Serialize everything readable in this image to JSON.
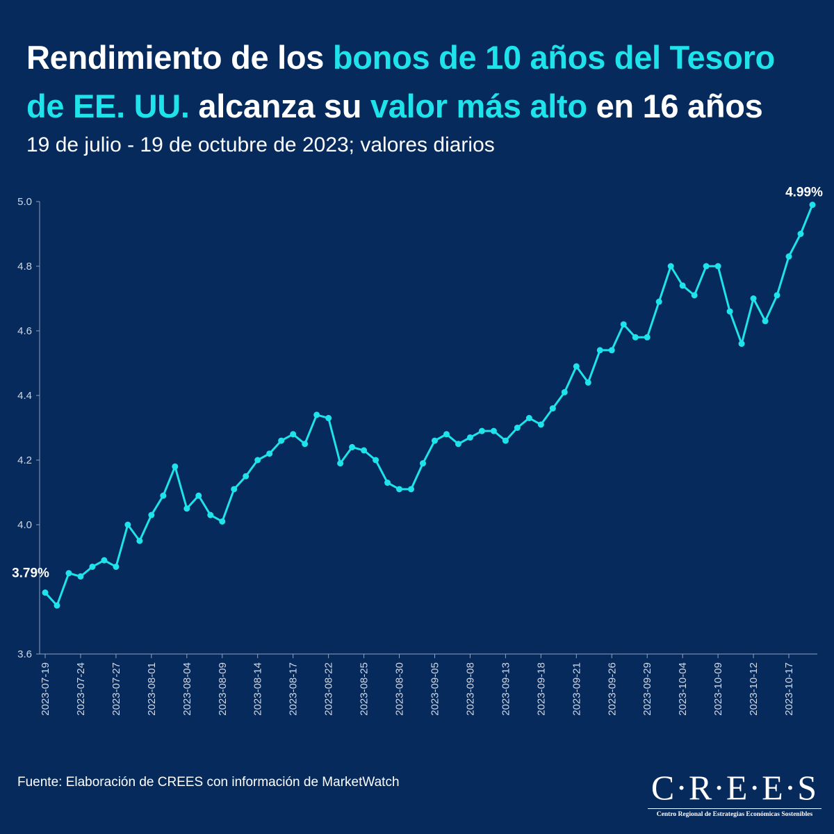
{
  "title_segments": [
    {
      "text": "Rendimiento de los ",
      "highlight": false
    },
    {
      "text": "bonos de 10 años del Tesoro de EE. UU.",
      "highlight": true
    },
    {
      "text": " alcanza su ",
      "highlight": false
    },
    {
      "text": "valor más alto",
      "highlight": true
    },
    {
      "text": " en 16 años",
      "highlight": false
    }
  ],
  "subtitle": "19 de julio - 19 de octubre de 2023; valores diarios",
  "source": "Fuente: Elaboración de CREES con información de MarketWatch",
  "logo": {
    "name": "C·R·E·E·S",
    "subtitle": "Centro Regional de Estrategias Económicas Sostenibles"
  },
  "colors": {
    "background": "#072a5c",
    "line": "#1ee3ea",
    "highlight": "#1ee3ea",
    "axis": "#8fa3c0"
  },
  "chart_data": {
    "type": "line",
    "title": "Rendimiento de los bonos de 10 años del Tesoro de EE. UU. alcanza su valor más alto en 16 años",
    "xlabel": "",
    "ylabel": "",
    "ylim": [
      3.6,
      5.0
    ],
    "yticks": [
      "3.6",
      "4.0",
      "4.2",
      "4.4",
      "4.6",
      "4.8",
      "5.0"
    ],
    "grid": false,
    "tick_every": 3,
    "x_tick_labels": [
      "2023-07-19",
      "2023-07-24",
      "2023-07-27",
      "2023-08-01",
      "2023-08-04",
      "2023-08-09",
      "2023-08-14",
      "2023-08-17",
      "2023-08-22",
      "2023-08-25",
      "2023-08-30",
      "2023-09-05",
      "2023-09-08",
      "2023-09-13",
      "2023-09-18",
      "2023-09-21",
      "2023-09-26",
      "2023-09-29",
      "2023-10-04",
      "2023-10-09",
      "2023-10-12",
      "2023-10-17"
    ],
    "values": [
      3.79,
      3.75,
      3.85,
      3.84,
      3.87,
      3.89,
      3.87,
      4.0,
      3.95,
      4.03,
      4.09,
      4.18,
      4.05,
      4.09,
      4.03,
      4.01,
      4.11,
      4.15,
      4.2,
      4.22,
      4.26,
      4.28,
      4.25,
      4.34,
      4.33,
      4.19,
      4.24,
      4.23,
      4.2,
      4.13,
      4.11,
      4.11,
      4.19,
      4.26,
      4.28,
      4.25,
      4.27,
      4.29,
      4.29,
      4.26,
      4.3,
      4.33,
      4.31,
      4.36,
      4.41,
      4.49,
      4.44,
      4.54,
      4.54,
      4.62,
      4.58,
      4.58,
      4.69,
      4.8,
      4.74,
      4.71,
      4.8,
      4.8,
      4.66,
      4.56,
      4.7,
      4.63,
      4.71,
      4.83,
      4.9,
      4.99
    ],
    "annotations": [
      {
        "text": "3.79%",
        "point": "first"
      },
      {
        "text": "4.99%",
        "point": "last"
      }
    ]
  }
}
